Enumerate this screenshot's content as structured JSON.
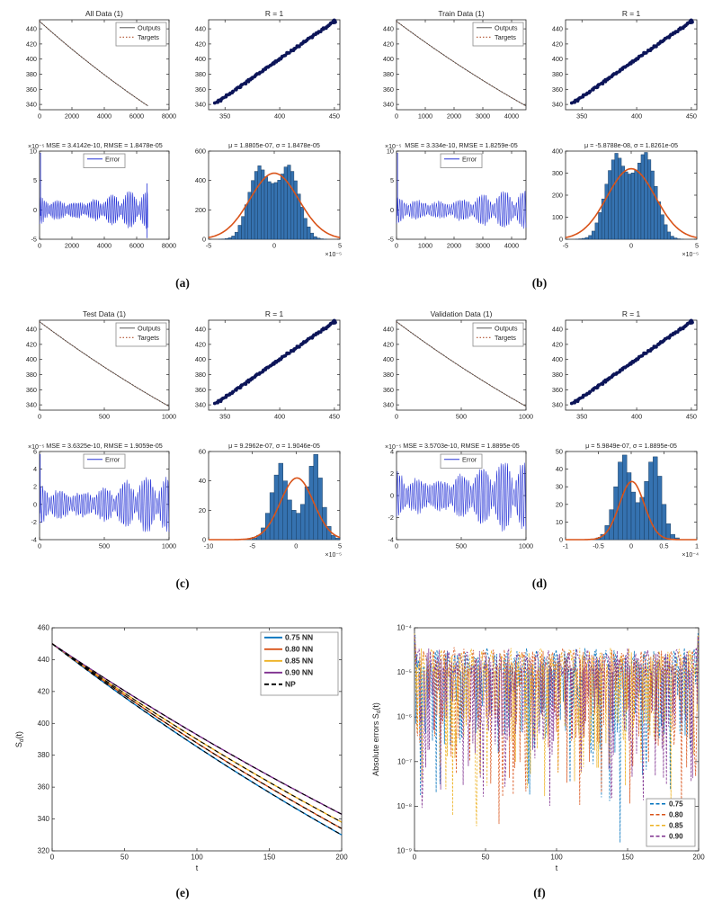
{
  "captions": {
    "a": "(a)",
    "b": "(b)",
    "c": "(c)",
    "d": "(d)",
    "e": "(e)",
    "f": "(f)"
  },
  "colors": {
    "blue": "#0072BD",
    "orange": "#D95319",
    "yellow": "#EDB120",
    "purple": "#7E2F8E",
    "axis": "#252525",
    "error_line": "#2633D6",
    "hist_fill": "#3572B0",
    "hist_edge": "#17395C",
    "fit_line": "#D95319",
    "reg_dot": "#0C1559",
    "outputs_line": "#404040",
    "targets_line": "#B05330",
    "np": "#000000"
  },
  "chart_data": [
    {
      "panel": "a",
      "caption": "(a)",
      "subplots": [
        {
          "type": "decay",
          "title": "All Data (1)",
          "legend": [
            "Outputs",
            "Targets"
          ],
          "xlim": [
            0,
            8000
          ],
          "xticks": [
            0,
            2000,
            4000,
            6000,
            8000
          ],
          "ylim": [
            333,
            452
          ],
          "yticks": [
            340,
            360,
            380,
            400,
            420,
            440
          ],
          "y_start": 450,
          "y_end": 338,
          "x_end": 6700
        },
        {
          "type": "regression",
          "title": "R = 1",
          "xlim": [
            335,
            455
          ],
          "xticks": [
            350,
            400,
            450
          ],
          "ylim": [
            333,
            452
          ],
          "yticks": [
            340,
            360,
            380,
            400,
            420,
            440
          ],
          "diag": [
            341,
            450
          ]
        },
        {
          "type": "error",
          "title": "MSE = 3.4142e-10, RMSE = 1.8478e-05",
          "legend": [
            "Error"
          ],
          "xlim": [
            0,
            8000
          ],
          "xticks": [
            0,
            2000,
            4000,
            6000,
            8000
          ],
          "ylim": [
            -5,
            10
          ],
          "yticks": [
            -5,
            0,
            5,
            10
          ],
          "y_exp": "-5",
          "seed": 11,
          "x_end": 6700,
          "spikes": [
            {
              "x": 60,
              "lo": -1,
              "hi": 9.7
            },
            {
              "x": 6640,
              "lo": -4.8,
              "hi": 4.5
            }
          ]
        },
        {
          "type": "hist",
          "title": "μ = 1.8805e-07, σ = 1.8478e-05",
          "xlim": [
            -5,
            5
          ],
          "xticks": [
            -5,
            0,
            5
          ],
          "x_exp": "-5",
          "ylim": [
            0,
            600
          ],
          "yticks": [
            0,
            200,
            400,
            600
          ],
          "fit_peak": 450,
          "fit_mu": 0,
          "fit_sigma": 1.85,
          "bins": [
            0,
            0,
            0,
            1,
            2,
            5,
            10,
            22,
            48,
            95,
            155,
            235,
            320,
            400,
            462,
            500,
            472,
            425,
            392,
            380,
            386,
            402,
            444,
            492,
            505,
            462,
            398,
            308,
            218,
            142,
            84,
            42,
            18,
            8,
            3,
            1,
            0,
            0,
            0,
            0
          ]
        }
      ]
    },
    {
      "panel": "b",
      "caption": "(b)",
      "subplots": [
        {
          "type": "decay",
          "title": "Train Data (1)",
          "legend": [
            "Outputs",
            "Targets"
          ],
          "xlim": [
            0,
            4500
          ],
          "xticks": [
            0,
            1000,
            2000,
            3000,
            4000
          ],
          "ylim": [
            333,
            452
          ],
          "yticks": [
            340,
            360,
            380,
            400,
            420,
            440
          ],
          "y_start": 450,
          "y_end": 338
        },
        {
          "type": "regression",
          "title": "R = 1",
          "xlim": [
            335,
            455
          ],
          "xticks": [
            350,
            400,
            450
          ],
          "ylim": [
            333,
            452
          ],
          "yticks": [
            340,
            360,
            380,
            400,
            420,
            440
          ],
          "diag": [
            341,
            450
          ]
        },
        {
          "type": "error",
          "title": "MSE = 3.334e-10, RMSE = 1.8259e-05",
          "legend": [
            "Error"
          ],
          "xlim": [
            0,
            4500
          ],
          "xticks": [
            0,
            1000,
            2000,
            3000,
            4000
          ],
          "ylim": [
            -5,
            10
          ],
          "yticks": [
            -5,
            0,
            5,
            10
          ],
          "y_exp": "-5",
          "seed": 23,
          "spikes": [
            {
              "x": 35,
              "lo": -1,
              "hi": 9.7
            }
          ]
        },
        {
          "type": "hist",
          "title": "μ = -5.8788e-08, σ = 1.8261e-05",
          "xlim": [
            -5,
            5
          ],
          "xticks": [
            -5,
            0,
            5
          ],
          "x_exp": "-5",
          "ylim": [
            0,
            400
          ],
          "yticks": [
            0,
            100,
            200,
            300,
            400
          ],
          "fit_peak": 320,
          "fit_mu": 0,
          "fit_sigma": 1.83,
          "bins": [
            0,
            0,
            0,
            1,
            2,
            4,
            8,
            17,
            37,
            74,
            121,
            183,
            250,
            312,
            360,
            390,
            368,
            332,
            306,
            296,
            301,
            314,
            346,
            384,
            394,
            361,
            310,
            240,
            170,
            111,
            66,
            33,
            14,
            6,
            2,
            1,
            0,
            0,
            0,
            0
          ]
        }
      ]
    },
    {
      "panel": "c",
      "caption": "(c)",
      "subplots": [
        {
          "type": "decay",
          "title": "Test Data (1)",
          "legend": [
            "Outputs",
            "Targets"
          ],
          "xlim": [
            0,
            1000
          ],
          "xticks": [
            0,
            500,
            1000
          ],
          "ylim": [
            333,
            452
          ],
          "yticks": [
            340,
            360,
            380,
            400,
            420,
            440
          ],
          "y_start": 450,
          "y_end": 338
        },
        {
          "type": "regression",
          "title": "R = 1",
          "xlim": [
            335,
            455
          ],
          "xticks": [
            350,
            400,
            450
          ],
          "ylim": [
            333,
            452
          ],
          "yticks": [
            340,
            360,
            380,
            400,
            420,
            440
          ],
          "diag": [
            341,
            450
          ]
        },
        {
          "type": "error",
          "title": "MSE = 3.6325e-10, RMSE = 1.9059e-05",
          "legend": [
            "Error"
          ],
          "xlim": [
            0,
            1000
          ],
          "xticks": [
            0,
            500,
            1000
          ],
          "ylim": [
            -4,
            6
          ],
          "yticks": [
            -4,
            -2,
            0,
            2,
            4,
            6
          ],
          "y_exp": "-5",
          "seed": 37,
          "spikes": [
            {
              "x": 5,
              "lo": -1,
              "hi": 5.7
            }
          ]
        },
        {
          "type": "hist",
          "title": "μ = 9.2962e-07, σ = 1.9046e-05",
          "xlim": [
            -10,
            5
          ],
          "xticks": [
            -10,
            -5,
            0,
            5
          ],
          "x_exp": "-5",
          "ylim": [
            0,
            60
          ],
          "yticks": [
            0,
            20,
            40,
            60
          ],
          "fit_peak": 42,
          "fit_mu": 0.1,
          "fit_sigma": 1.9,
          "bins": [
            0,
            0,
            0,
            0,
            0,
            0,
            0,
            0,
            0,
            0,
            1,
            3,
            8,
            18,
            32,
            44,
            52,
            40,
            27,
            20,
            18,
            24,
            36,
            50,
            58,
            42,
            22,
            9,
            3,
            1
          ]
        }
      ]
    },
    {
      "panel": "d",
      "caption": "(d)",
      "subplots": [
        {
          "type": "decay",
          "title": "Validation Data (1)",
          "legend": [
            "Outputs",
            "Targets"
          ],
          "xlim": [
            0,
            1000
          ],
          "xticks": [
            0,
            500,
            1000
          ],
          "ylim": [
            333,
            452
          ],
          "yticks": [
            340,
            360,
            380,
            400,
            420,
            440
          ],
          "y_start": 450,
          "y_end": 338
        },
        {
          "type": "regression",
          "title": "R = 1",
          "xlim": [
            335,
            455
          ],
          "xticks": [
            350,
            400,
            450
          ],
          "ylim": [
            333,
            452
          ],
          "yticks": [
            340,
            360,
            380,
            400,
            420,
            440
          ],
          "diag": [
            341,
            450
          ]
        },
        {
          "type": "error",
          "title": "MSE = 3.5703e-10, RMSE = 1.8895e-05",
          "legend": [
            "Error"
          ],
          "xlim": [
            0,
            1000
          ],
          "xticks": [
            0,
            500,
            1000
          ],
          "ylim": [
            -4,
            4
          ],
          "yticks": [
            -4,
            -2,
            0,
            2,
            4
          ],
          "y_exp": "-5",
          "seed": 51,
          "spikes": []
        },
        {
          "type": "hist",
          "title": "μ = 5.9849e-07, σ = 1.8895e-05",
          "xlim": [
            -1,
            1
          ],
          "xticks": [
            -1,
            -0.5,
            0,
            0.5,
            1
          ],
          "x_exp": "-4",
          "ylim": [
            0,
            50
          ],
          "yticks": [
            0,
            10,
            20,
            30,
            40,
            50
          ],
          "fit_peak": 33,
          "fit_mu": 0.01,
          "fit_sigma": 0.19,
          "bins": [
            0,
            0,
            0,
            0,
            0,
            0,
            0,
            1,
            3,
            8,
            17,
            30,
            44,
            48,
            38,
            27,
            21,
            24,
            33,
            44,
            47,
            36,
            20,
            9,
            3,
            1,
            0,
            0,
            0,
            0
          ]
        }
      ]
    },
    {
      "panel": "e",
      "caption": "(e)",
      "type": "multidecay",
      "xlabel": "t",
      "ylabel_parts": [
        "S",
        "d",
        "(t)"
      ],
      "xlim": [
        0,
        200
      ],
      "xticks": [
        0,
        50,
        100,
        150,
        200
      ],
      "ylim": [
        320,
        460
      ],
      "yticks": [
        320,
        340,
        360,
        380,
        400,
        420,
        440,
        460
      ],
      "y_start": 450,
      "np_label": "NP",
      "series": [
        {
          "label": "0.75 NN",
          "color": "blue",
          "y_end": 330
        },
        {
          "label": "0.80 NN",
          "color": "orange",
          "y_end": 334
        },
        {
          "label": "0.85 NN",
          "color": "yellow",
          "y_end": 338
        },
        {
          "label": "0.90 NN",
          "color": "purple",
          "y_end": 343
        }
      ]
    },
    {
      "panel": "f",
      "caption": "(f)",
      "type": "logerror",
      "xlabel": "t",
      "ylabel_parts": [
        "Absolute errors S",
        "d",
        "(t)"
      ],
      "xlim": [
        0,
        200
      ],
      "xticks": [
        0,
        50,
        100,
        150,
        200
      ],
      "ylog": [
        -9,
        -4
      ],
      "series": [
        {
          "label": "0.75",
          "color": "blue",
          "seed": 101
        },
        {
          "label": "0.80",
          "color": "orange",
          "seed": 211
        },
        {
          "label": "0.85",
          "color": "yellow",
          "seed": 307
        },
        {
          "label": "0.90",
          "color": "purple",
          "seed": 419
        }
      ]
    }
  ]
}
